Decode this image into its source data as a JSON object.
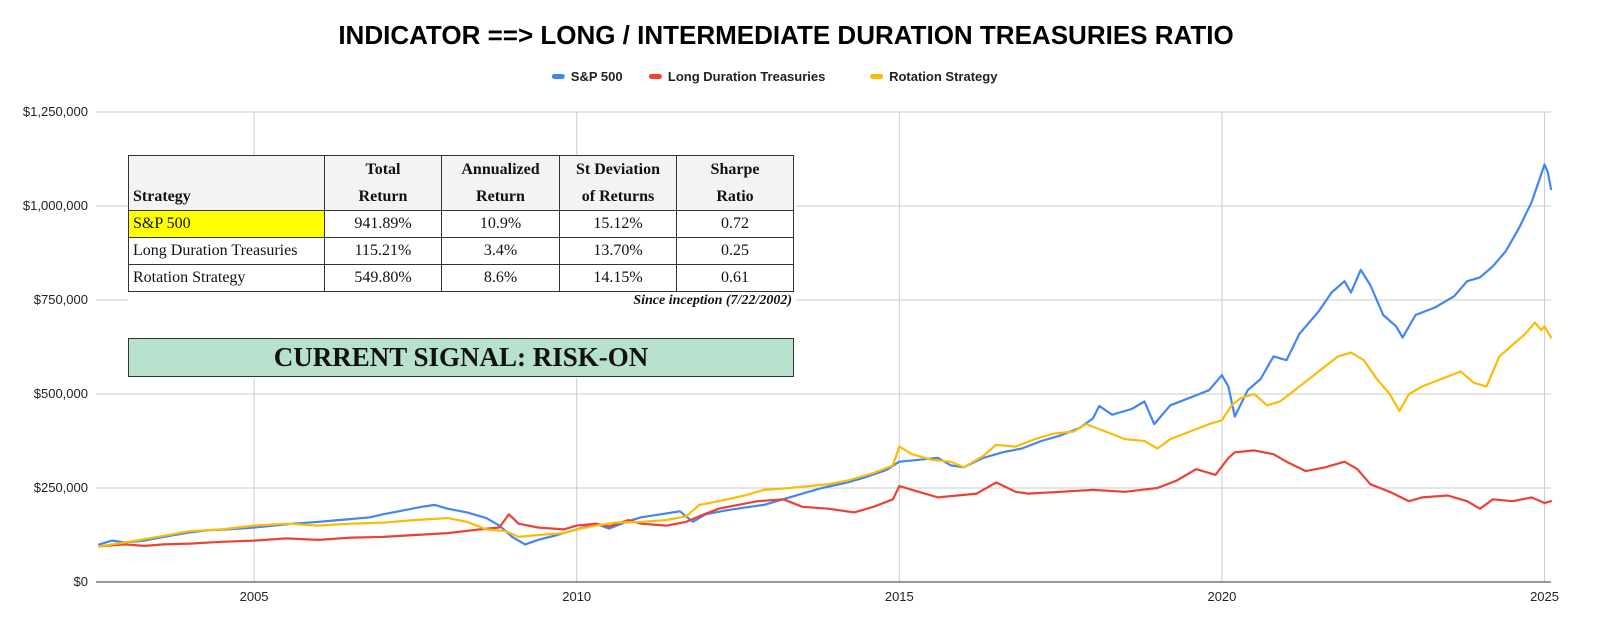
{
  "chart_data": {
    "type": "line",
    "title": "INDICATOR ==> LONG / INTERMEDIATE DURATION TREASURIES RATIO",
    "xlabel": "",
    "ylabel": "",
    "x_ticks": [
      "2005",
      "2010",
      "2015",
      "2020",
      "2025"
    ],
    "y_ticks": [
      "$0",
      "$250,000",
      "$500,000",
      "$750,000",
      "$1,000,000",
      "$1,250,000"
    ],
    "xlim": [
      2002.55,
      2025.1
    ],
    "ylim": [
      0,
      1250000
    ],
    "grid": true,
    "legend_position": "top",
    "series": [
      {
        "name": "S&P 500",
        "color": "#4285f4",
        "points": [
          [
            2002.6,
            100000
          ],
          [
            2002.8,
            110000
          ],
          [
            2003.0,
            105000
          ],
          [
            2003.3,
            110000
          ],
          [
            2003.6,
            120000
          ],
          [
            2004.0,
            132000
          ],
          [
            2004.3,
            138000
          ],
          [
            2004.6,
            140000
          ],
          [
            2005.0,
            145000
          ],
          [
            2005.3,
            150000
          ],
          [
            2005.6,
            155000
          ],
          [
            2006.0,
            160000
          ],
          [
            2006.4,
            166000
          ],
          [
            2006.8,
            172000
          ],
          [
            2007.0,
            180000
          ],
          [
            2007.3,
            190000
          ],
          [
            2007.6,
            200000
          ],
          [
            2007.8,
            205000
          ],
          [
            2008.0,
            195000
          ],
          [
            2008.3,
            185000
          ],
          [
            2008.6,
            170000
          ],
          [
            2008.8,
            150000
          ],
          [
            2009.0,
            120000
          ],
          [
            2009.2,
            100000
          ],
          [
            2009.4,
            112000
          ],
          [
            2009.7,
            125000
          ],
          [
            2010.0,
            140000
          ],
          [
            2010.3,
            155000
          ],
          [
            2010.5,
            142000
          ],
          [
            2010.8,
            162000
          ],
          [
            2011.0,
            172000
          ],
          [
            2011.3,
            180000
          ],
          [
            2011.6,
            188000
          ],
          [
            2011.8,
            160000
          ],
          [
            2012.0,
            180000
          ],
          [
            2012.3,
            190000
          ],
          [
            2012.6,
            198000
          ],
          [
            2012.9,
            205000
          ],
          [
            2013.2,
            220000
          ],
          [
            2013.5,
            235000
          ],
          [
            2013.8,
            250000
          ],
          [
            2014.2,
            265000
          ],
          [
            2014.5,
            280000
          ],
          [
            2014.8,
            298000
          ],
          [
            2015.0,
            320000
          ],
          [
            2015.3,
            325000
          ],
          [
            2015.6,
            330000
          ],
          [
            2015.8,
            310000
          ],
          [
            2016.0,
            305000
          ],
          [
            2016.3,
            330000
          ],
          [
            2016.6,
            345000
          ],
          [
            2016.9,
            355000
          ],
          [
            2017.2,
            375000
          ],
          [
            2017.5,
            390000
          ],
          [
            2017.8,
            410000
          ],
          [
            2018.0,
            435000
          ],
          [
            2018.1,
            468000
          ],
          [
            2018.3,
            445000
          ],
          [
            2018.6,
            460000
          ],
          [
            2018.8,
            480000
          ],
          [
            2018.95,
            420000
          ],
          [
            2019.2,
            470000
          ],
          [
            2019.5,
            490000
          ],
          [
            2019.8,
            510000
          ],
          [
            2020.0,
            550000
          ],
          [
            2020.1,
            520000
          ],
          [
            2020.2,
            440000
          ],
          [
            2020.4,
            510000
          ],
          [
            2020.6,
            540000
          ],
          [
            2020.8,
            600000
          ],
          [
            2021.0,
            590000
          ],
          [
            2021.2,
            660000
          ],
          [
            2021.5,
            720000
          ],
          [
            2021.7,
            770000
          ],
          [
            2021.9,
            800000
          ],
          [
            2022.0,
            770000
          ],
          [
            2022.15,
            830000
          ],
          [
            2022.3,
            790000
          ],
          [
            2022.5,
            710000
          ],
          [
            2022.7,
            680000
          ],
          [
            2022.8,
            650000
          ],
          [
            2023.0,
            710000
          ],
          [
            2023.3,
            730000
          ],
          [
            2023.6,
            760000
          ],
          [
            2023.8,
            800000
          ],
          [
            2024.0,
            810000
          ],
          [
            2024.2,
            840000
          ],
          [
            2024.4,
            880000
          ],
          [
            2024.6,
            940000
          ],
          [
            2024.8,
            1010000
          ],
          [
            2024.9,
            1060000
          ],
          [
            2025.0,
            1110000
          ],
          [
            2025.05,
            1090000
          ],
          [
            2025.1,
            1045000
          ]
        ]
      },
      {
        "name": "Long Duration Treasuries",
        "color": "#ea4335",
        "points": [
          [
            2002.6,
            95000
          ],
          [
            2003.0,
            100000
          ],
          [
            2003.3,
            96000
          ],
          [
            2003.6,
            100000
          ],
          [
            2004.0,
            102000
          ],
          [
            2004.5,
            107000
          ],
          [
            2005.0,
            110000
          ],
          [
            2005.5,
            116000
          ],
          [
            2006.0,
            112000
          ],
          [
            2006.5,
            118000
          ],
          [
            2007.0,
            120000
          ],
          [
            2007.5,
            125000
          ],
          [
            2008.0,
            130000
          ],
          [
            2008.5,
            140000
          ],
          [
            2008.8,
            145000
          ],
          [
            2008.95,
            180000
          ],
          [
            2009.1,
            155000
          ],
          [
            2009.4,
            145000
          ],
          [
            2009.8,
            140000
          ],
          [
            2010.0,
            150000
          ],
          [
            2010.3,
            155000
          ],
          [
            2010.5,
            148000
          ],
          [
            2010.8,
            165000
          ],
          [
            2011.0,
            155000
          ],
          [
            2011.4,
            150000
          ],
          [
            2011.7,
            160000
          ],
          [
            2011.9,
            175000
          ],
          [
            2012.2,
            195000
          ],
          [
            2012.5,
            205000
          ],
          [
            2012.8,
            215000
          ],
          [
            2013.2,
            220000
          ],
          [
            2013.5,
            200000
          ],
          [
            2013.9,
            195000
          ],
          [
            2014.3,
            185000
          ],
          [
            2014.6,
            200000
          ],
          [
            2014.9,
            220000
          ],
          [
            2015.0,
            255000
          ],
          [
            2015.3,
            240000
          ],
          [
            2015.6,
            225000
          ],
          [
            2015.9,
            230000
          ],
          [
            2016.2,
            235000
          ],
          [
            2016.5,
            265000
          ],
          [
            2016.8,
            240000
          ],
          [
            2017.0,
            235000
          ],
          [
            2017.5,
            240000
          ],
          [
            2018.0,
            245000
          ],
          [
            2018.5,
            240000
          ],
          [
            2019.0,
            250000
          ],
          [
            2019.3,
            270000
          ],
          [
            2019.6,
            300000
          ],
          [
            2019.9,
            285000
          ],
          [
            2020.1,
            330000
          ],
          [
            2020.2,
            345000
          ],
          [
            2020.5,
            350000
          ],
          [
            2020.8,
            340000
          ],
          [
            2021.0,
            320000
          ],
          [
            2021.3,
            295000
          ],
          [
            2021.6,
            305000
          ],
          [
            2021.9,
            320000
          ],
          [
            2022.1,
            300000
          ],
          [
            2022.3,
            260000
          ],
          [
            2022.6,
            240000
          ],
          [
            2022.9,
            215000
          ],
          [
            2023.1,
            225000
          ],
          [
            2023.5,
            230000
          ],
          [
            2023.8,
            215000
          ],
          [
            2024.0,
            195000
          ],
          [
            2024.2,
            220000
          ],
          [
            2024.5,
            215000
          ],
          [
            2024.8,
            225000
          ],
          [
            2025.0,
            210000
          ],
          [
            2025.1,
            215000
          ]
        ]
      },
      {
        "name": "Rotation Strategy",
        "color": "#fbbc04",
        "points": [
          [
            2002.6,
            95000
          ],
          [
            2003.0,
            105000
          ],
          [
            2003.5,
            120000
          ],
          [
            2004.0,
            135000
          ],
          [
            2004.5,
            140000
          ],
          [
            2005.0,
            150000
          ],
          [
            2005.5,
            155000
          ],
          [
            2006.0,
            150000
          ],
          [
            2006.5,
            155000
          ],
          [
            2007.0,
            158000
          ],
          [
            2007.5,
            165000
          ],
          [
            2008.0,
            170000
          ],
          [
            2008.3,
            160000
          ],
          [
            2008.6,
            140000
          ],
          [
            2008.9,
            135000
          ],
          [
            2009.1,
            120000
          ],
          [
            2009.4,
            125000
          ],
          [
            2009.8,
            130000
          ],
          [
            2010.0,
            140000
          ],
          [
            2010.3,
            150000
          ],
          [
            2010.6,
            158000
          ],
          [
            2011.0,
            160000
          ],
          [
            2011.4,
            165000
          ],
          [
            2011.7,
            175000
          ],
          [
            2011.9,
            205000
          ],
          [
            2012.2,
            215000
          ],
          [
            2012.6,
            230000
          ],
          [
            2012.9,
            245000
          ],
          [
            2013.3,
            250000
          ],
          [
            2013.6,
            255000
          ],
          [
            2013.9,
            260000
          ],
          [
            2014.2,
            270000
          ],
          [
            2014.6,
            290000
          ],
          [
            2014.9,
            310000
          ],
          [
            2015.0,
            360000
          ],
          [
            2015.2,
            340000
          ],
          [
            2015.5,
            325000
          ],
          [
            2015.8,
            320000
          ],
          [
            2016.0,
            305000
          ],
          [
            2016.3,
            335000
          ],
          [
            2016.5,
            365000
          ],
          [
            2016.8,
            360000
          ],
          [
            2017.1,
            380000
          ],
          [
            2017.4,
            395000
          ],
          [
            2017.7,
            400000
          ],
          [
            2017.9,
            420000
          ],
          [
            2018.2,
            400000
          ],
          [
            2018.5,
            380000
          ],
          [
            2018.8,
            375000
          ],
          [
            2019.0,
            355000
          ],
          [
            2019.2,
            380000
          ],
          [
            2019.5,
            400000
          ],
          [
            2019.8,
            420000
          ],
          [
            2020.0,
            430000
          ],
          [
            2020.15,
            470000
          ],
          [
            2020.3,
            490000
          ],
          [
            2020.5,
            500000
          ],
          [
            2020.7,
            470000
          ],
          [
            2020.9,
            480000
          ],
          [
            2021.2,
            520000
          ],
          [
            2021.5,
            560000
          ],
          [
            2021.8,
            600000
          ],
          [
            2022.0,
            610000
          ],
          [
            2022.2,
            590000
          ],
          [
            2022.4,
            540000
          ],
          [
            2022.6,
            500000
          ],
          [
            2022.75,
            455000
          ],
          [
            2022.9,
            500000
          ],
          [
            2023.1,
            520000
          ],
          [
            2023.4,
            540000
          ],
          [
            2023.7,
            560000
          ],
          [
            2023.9,
            530000
          ],
          [
            2024.1,
            520000
          ],
          [
            2024.3,
            600000
          ],
          [
            2024.5,
            630000
          ],
          [
            2024.7,
            660000
          ],
          [
            2024.85,
            690000
          ],
          [
            2024.95,
            670000
          ],
          [
            2025.0,
            680000
          ],
          [
            2025.05,
            665000
          ],
          [
            2025.1,
            650000
          ]
        ]
      }
    ]
  },
  "stats_table": {
    "headers": [
      {
        "line1": "",
        "line2": "Strategy"
      },
      {
        "line1": "Total",
        "line2": "Return"
      },
      {
        "line1": "Annualized",
        "line2": "Return"
      },
      {
        "line1": "St Deviation",
        "line2": "of Returns"
      },
      {
        "line1": "Sharpe",
        "line2": "Ratio"
      }
    ],
    "rows": [
      {
        "strategy": "S&P 500",
        "total_return": "941.89%",
        "annualized_return": "10.9%",
        "st_deviation": "15.12%",
        "sharpe_ratio": "0.72",
        "highlight_color": "#ffff00"
      },
      {
        "strategy": "Long Duration Treasuries",
        "total_return": "115.21%",
        "annualized_return": "3.4%",
        "st_deviation": "13.70%",
        "sharpe_ratio": "0.25"
      },
      {
        "strategy": "Rotation Strategy",
        "total_return": "549.80%",
        "annualized_return": "8.6%",
        "st_deviation": "14.15%",
        "sharpe_ratio": "0.61"
      }
    ],
    "note": "Since inception (7/22/2002)",
    "signal": "CURRENT SIGNAL: RISK-ON",
    "signal_color": "#b7e1cd"
  }
}
